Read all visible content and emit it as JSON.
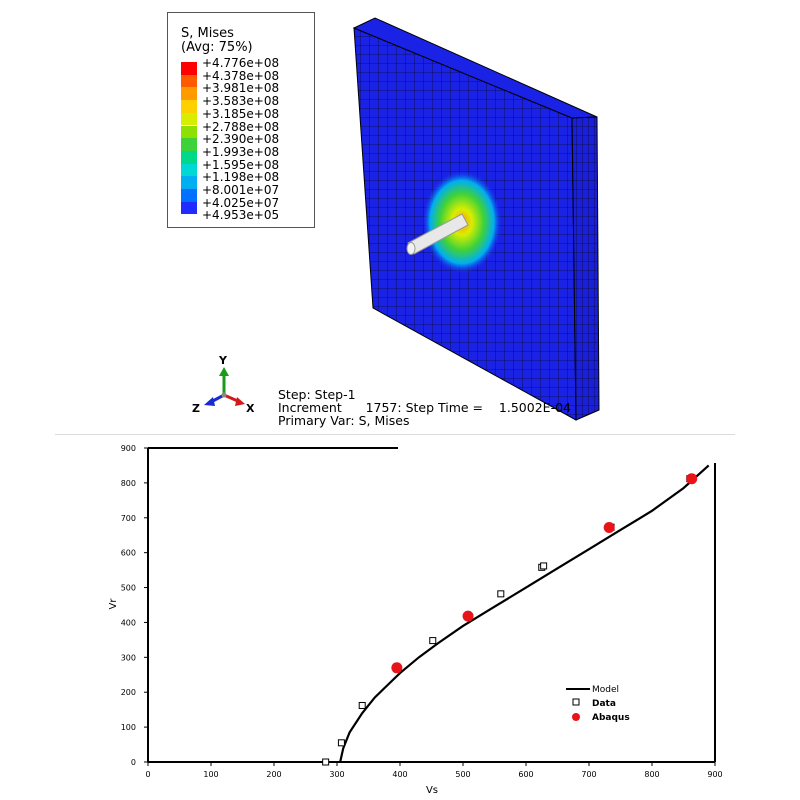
{
  "viewport": {
    "legend": {
      "title_line1": "S, Mises",
      "title_line2": "(Avg: 75%)",
      "levels": [
        {
          "value": "+4.776e+08",
          "color": "#ff0000"
        },
        {
          "value": "+4.378e+08",
          "color": "#ff5a00"
        },
        {
          "value": "+3.981e+08",
          "color": "#ff9a00"
        },
        {
          "value": "+3.583e+08",
          "color": "#ffd000"
        },
        {
          "value": "+3.185e+08",
          "color": "#d8ee00"
        },
        {
          "value": "+2.788e+08",
          "color": "#8ee000"
        },
        {
          "value": "+2.390e+08",
          "color": "#3ed13a"
        },
        {
          "value": "+1.993e+08",
          "color": "#00d98a"
        },
        {
          "value": "+1.595e+08",
          "color": "#00d8d6"
        },
        {
          "value": "+1.198e+08",
          "color": "#00aef2"
        },
        {
          "value": "+8.001e+07",
          "color": "#0070ff"
        },
        {
          "value": "+4.025e+07",
          "color": "#1f2bff"
        },
        {
          "value": "+4.953e+05",
          "color": ""
        }
      ]
    },
    "info": {
      "step": "Step: Step-1",
      "increment": "Increment      1757: Step Time =    1.5002E-04",
      "primary_var": "Primary Var: S, Mises"
    },
    "triad": {
      "y": "Y",
      "x": "X",
      "z": "Z"
    }
  },
  "chart_data": {
    "type": "scatter",
    "xlabel": "Vs",
    "ylabel": "Vr",
    "xlim": [
      0,
      900
    ],
    "ylim": [
      0,
      900
    ],
    "x_ticks": [
      0,
      100,
      200,
      300,
      400,
      500,
      600,
      700,
      800,
      900
    ],
    "y_ticks": [
      0,
      100,
      200,
      300,
      400,
      500,
      600,
      700,
      800,
      900
    ],
    "grid": false,
    "legend_position": "lower-right",
    "series": [
      {
        "name": "Model",
        "kind": "line",
        "color": "#000000",
        "x": [
          305,
          310,
          320,
          340,
          360,
          380,
          400,
          430,
          460,
          500,
          550,
          600,
          650,
          700,
          750,
          800,
          850,
          890
        ],
        "y": [
          0,
          40,
          85,
          140,
          185,
          220,
          255,
          300,
          340,
          390,
          445,
          500,
          555,
          610,
          665,
          720,
          785,
          850
        ]
      },
      {
        "name": "Data",
        "kind": "marker-square-open",
        "color": "#000000",
        "x": [
          282,
          307,
          340,
          452,
          560,
          625,
          628,
          735,
          860
        ],
        "y": [
          0,
          55,
          162,
          348,
          482,
          558,
          562,
          673,
          812
        ]
      },
      {
        "name": "Abaqus",
        "kind": "marker-circle-filled",
        "color": "#e8141a",
        "x": [
          395,
          508,
          732,
          863
        ],
        "y": [
          270,
          418,
          672,
          812
        ]
      }
    ]
  }
}
